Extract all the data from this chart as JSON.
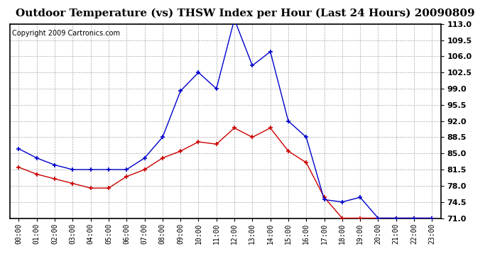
{
  "title": "Outdoor Temperature (vs) THSW Index per Hour (Last 24 Hours) 20090809",
  "copyright": "Copyright 2009 Cartronics.com",
  "hours": [
    "00:00",
    "01:00",
    "02:00",
    "03:00",
    "04:00",
    "05:00",
    "06:00",
    "07:00",
    "08:00",
    "09:00",
    "10:00",
    "11:00",
    "12:00",
    "13:00",
    "14:00",
    "15:00",
    "16:00",
    "17:00",
    "18:00",
    "19:00",
    "20:00",
    "21:00",
    "22:00",
    "23:00"
  ],
  "temp": [
    82.0,
    80.5,
    79.5,
    78.5,
    77.5,
    77.5,
    80.0,
    81.5,
    84.0,
    85.5,
    87.5,
    87.0,
    90.5,
    88.5,
    90.5,
    85.5,
    83.0,
    75.5,
    71.0,
    71.0,
    71.0,
    71.0,
    71.0,
    71.0
  ],
  "thsw": [
    86.0,
    84.0,
    82.5,
    81.5,
    81.5,
    81.5,
    81.5,
    84.0,
    88.5,
    98.5,
    102.5,
    99.0,
    114.0,
    104.0,
    107.0,
    92.0,
    88.5,
    75.0,
    74.5,
    75.5,
    71.0,
    71.0,
    71.0,
    71.0
  ],
  "temp_color": "#cc0000",
  "thsw_color": "#0000cc",
  "ylim_min": 71.0,
  "ylim_max": 113.0,
  "yticks": [
    71.0,
    74.5,
    78.0,
    81.5,
    85.0,
    88.5,
    92.0,
    95.5,
    99.0,
    102.5,
    106.0,
    109.5,
    113.0
  ],
  "background_color": "#ffffff",
  "grid_color": "#aaaaaa",
  "title_fontsize": 11,
  "copyright_fontsize": 7
}
